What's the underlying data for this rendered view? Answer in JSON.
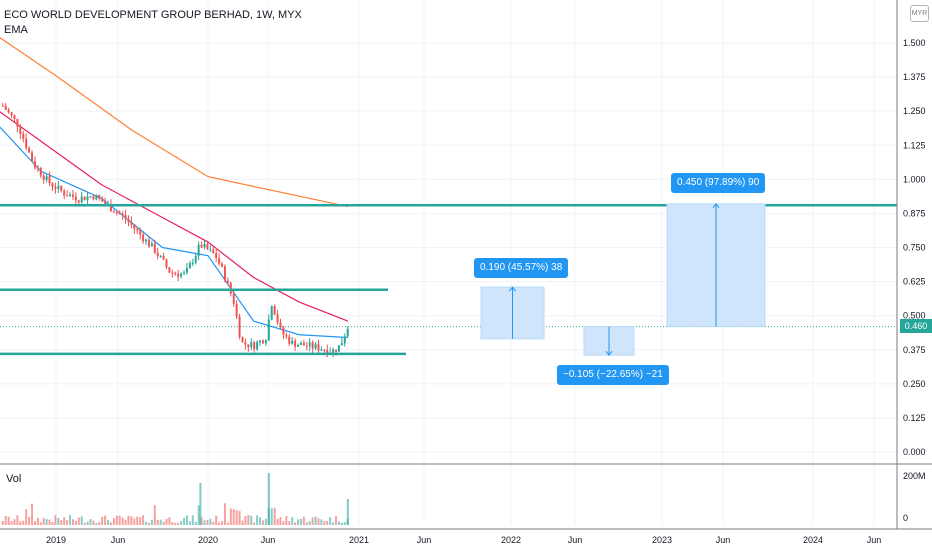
{
  "header": {
    "title": "ECO WORLD DEVELOPMENT GROUP BERHAD, 1W, MYX",
    "indicator": "EMA",
    "volume_label": "Vol",
    "currency": "MYR"
  },
  "last_price": "0.460",
  "measures": [
    {
      "label": "0.190 (45.57%) 38",
      "from": 0.415,
      "to": 0.605
    },
    {
      "label": "−0.105 (−22.65%) −21",
      "from": 0.46,
      "to": 0.355
    },
    {
      "label": "0.450 (97.89%) 90",
      "from": 0.46,
      "to": 0.91
    }
  ],
  "colors": {
    "up": "#26a69a",
    "down": "#ef5350",
    "ema_fast": "#2196f3",
    "ema_mid": "#e91e63",
    "ema_slow": "#ff7f32",
    "levels": "#26a69a",
    "measure": "#2196f3"
  },
  "chart_data": {
    "type": "candlestick",
    "symbol": "ECO WORLD DEVELOPMENT GROUP BERHAD",
    "interval": "1W",
    "exchange": "MYX",
    "y_ticks": [
      "0.000",
      "0.125",
      "0.250",
      "0.375",
      "0.500",
      "0.625",
      "0.750",
      "0.875",
      "1.000",
      "1.125",
      "1.250",
      "1.375",
      "1.500"
    ],
    "x_ticks": [
      "2019",
      "Jun",
      "2020",
      "Jun",
      "2021",
      "Jun",
      "2022",
      "Jun",
      "2023",
      "Jun",
      "2024",
      "Jun"
    ],
    "volume_ticks": [
      "200M",
      "0"
    ],
    "horizontal_levels": [
      0.905,
      0.595,
      0.36
    ],
    "ylim": [
      0,
      1.55
    ],
    "price_path": [
      [
        2018.65,
        1.27
      ],
      [
        2018.75,
        1.2
      ],
      [
        2018.85,
        1.06
      ],
      [
        2018.95,
        0.99
      ],
      [
        2019.05,
        0.95
      ],
      [
        2019.15,
        0.93
      ],
      [
        2019.25,
        0.94
      ],
      [
        2019.35,
        0.9
      ],
      [
        2019.45,
        0.86
      ],
      [
        2019.55,
        0.8
      ],
      [
        2019.65,
        0.74
      ],
      [
        2019.75,
        0.66
      ],
      [
        2019.85,
        0.65
      ],
      [
        2019.95,
        0.76
      ],
      [
        2020.05,
        0.72
      ],
      [
        2020.1,
        0.66
      ],
      [
        2020.17,
        0.55
      ],
      [
        2020.22,
        0.4
      ],
      [
        2020.3,
        0.39
      ],
      [
        2020.38,
        0.42
      ],
      [
        2020.42,
        0.55
      ],
      [
        2020.48,
        0.44
      ],
      [
        2020.55,
        0.4
      ],
      [
        2020.65,
        0.39
      ],
      [
        2020.75,
        0.38
      ],
      [
        2020.82,
        0.37
      ],
      [
        2020.87,
        0.39
      ],
      [
        2020.92,
        0.46
      ]
    ],
    "ema_slow_path": [
      [
        2018.55,
        1.55
      ],
      [
        2019.0,
        1.38
      ],
      [
        2019.5,
        1.18
      ],
      [
        2020.0,
        1.01
      ],
      [
        2020.5,
        0.95
      ],
      [
        2020.92,
        0.9
      ]
    ],
    "ema_mid_path": [
      [
        2018.55,
        1.28
      ],
      [
        2018.9,
        1.14
      ],
      [
        2019.3,
        0.98
      ],
      [
        2019.7,
        0.86
      ],
      [
        2020.0,
        0.77
      ],
      [
        2020.3,
        0.64
      ],
      [
        2020.6,
        0.55
      ],
      [
        2020.92,
        0.48
      ]
    ],
    "ema_fast_path": [
      [
        2018.55,
        1.24
      ],
      [
        2018.9,
        1.03
      ],
      [
        2019.3,
        0.93
      ],
      [
        2019.7,
        0.75
      ],
      [
        2020.0,
        0.72
      ],
      [
        2020.3,
        0.48
      ],
      [
        2020.6,
        0.43
      ],
      [
        2020.92,
        0.42
      ]
    ]
  }
}
